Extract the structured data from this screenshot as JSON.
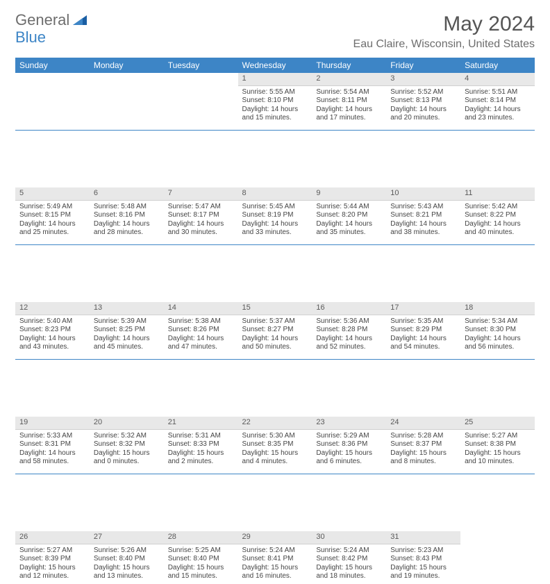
{
  "logo": {
    "word1": "General",
    "word2": "Blue"
  },
  "title": {
    "month": "May 2024",
    "location": "Eau Claire, Wisconsin, United States"
  },
  "colors": {
    "header_bg": "#3d85c6",
    "header_text": "#ffffff",
    "daynum_bg": "#e8e8e8",
    "divider": "#3d85c6",
    "logo_gray": "#6d6d6d",
    "logo_blue": "#3d85c6",
    "body_text": "#444444",
    "background": "#ffffff"
  },
  "days_of_week": [
    "Sunday",
    "Monday",
    "Tuesday",
    "Wednesday",
    "Thursday",
    "Friday",
    "Saturday"
  ],
  "weeks": [
    [
      null,
      null,
      null,
      {
        "n": "1",
        "sunrise": "5:55 AM",
        "sunset": "8:10 PM",
        "d1": "Daylight: 14 hours",
        "d2": "and 15 minutes."
      },
      {
        "n": "2",
        "sunrise": "5:54 AM",
        "sunset": "8:11 PM",
        "d1": "Daylight: 14 hours",
        "d2": "and 17 minutes."
      },
      {
        "n": "3",
        "sunrise": "5:52 AM",
        "sunset": "8:13 PM",
        "d1": "Daylight: 14 hours",
        "d2": "and 20 minutes."
      },
      {
        "n": "4",
        "sunrise": "5:51 AM",
        "sunset": "8:14 PM",
        "d1": "Daylight: 14 hours",
        "d2": "and 23 minutes."
      }
    ],
    [
      {
        "n": "5",
        "sunrise": "5:49 AM",
        "sunset": "8:15 PM",
        "d1": "Daylight: 14 hours",
        "d2": "and 25 minutes."
      },
      {
        "n": "6",
        "sunrise": "5:48 AM",
        "sunset": "8:16 PM",
        "d1": "Daylight: 14 hours",
        "d2": "and 28 minutes."
      },
      {
        "n": "7",
        "sunrise": "5:47 AM",
        "sunset": "8:17 PM",
        "d1": "Daylight: 14 hours",
        "d2": "and 30 minutes."
      },
      {
        "n": "8",
        "sunrise": "5:45 AM",
        "sunset": "8:19 PM",
        "d1": "Daylight: 14 hours",
        "d2": "and 33 minutes."
      },
      {
        "n": "9",
        "sunrise": "5:44 AM",
        "sunset": "8:20 PM",
        "d1": "Daylight: 14 hours",
        "d2": "and 35 minutes."
      },
      {
        "n": "10",
        "sunrise": "5:43 AM",
        "sunset": "8:21 PM",
        "d1": "Daylight: 14 hours",
        "d2": "and 38 minutes."
      },
      {
        "n": "11",
        "sunrise": "5:42 AM",
        "sunset": "8:22 PM",
        "d1": "Daylight: 14 hours",
        "d2": "and 40 minutes."
      }
    ],
    [
      {
        "n": "12",
        "sunrise": "5:40 AM",
        "sunset": "8:23 PM",
        "d1": "Daylight: 14 hours",
        "d2": "and 43 minutes."
      },
      {
        "n": "13",
        "sunrise": "5:39 AM",
        "sunset": "8:25 PM",
        "d1": "Daylight: 14 hours",
        "d2": "and 45 minutes."
      },
      {
        "n": "14",
        "sunrise": "5:38 AM",
        "sunset": "8:26 PM",
        "d1": "Daylight: 14 hours",
        "d2": "and 47 minutes."
      },
      {
        "n": "15",
        "sunrise": "5:37 AM",
        "sunset": "8:27 PM",
        "d1": "Daylight: 14 hours",
        "d2": "and 50 minutes."
      },
      {
        "n": "16",
        "sunrise": "5:36 AM",
        "sunset": "8:28 PM",
        "d1": "Daylight: 14 hours",
        "d2": "and 52 minutes."
      },
      {
        "n": "17",
        "sunrise": "5:35 AM",
        "sunset": "8:29 PM",
        "d1": "Daylight: 14 hours",
        "d2": "and 54 minutes."
      },
      {
        "n": "18",
        "sunrise": "5:34 AM",
        "sunset": "8:30 PM",
        "d1": "Daylight: 14 hours",
        "d2": "and 56 minutes."
      }
    ],
    [
      {
        "n": "19",
        "sunrise": "5:33 AM",
        "sunset": "8:31 PM",
        "d1": "Daylight: 14 hours",
        "d2": "and 58 minutes."
      },
      {
        "n": "20",
        "sunrise": "5:32 AM",
        "sunset": "8:32 PM",
        "d1": "Daylight: 15 hours",
        "d2": "and 0 minutes."
      },
      {
        "n": "21",
        "sunrise": "5:31 AM",
        "sunset": "8:33 PM",
        "d1": "Daylight: 15 hours",
        "d2": "and 2 minutes."
      },
      {
        "n": "22",
        "sunrise": "5:30 AM",
        "sunset": "8:35 PM",
        "d1": "Daylight: 15 hours",
        "d2": "and 4 minutes."
      },
      {
        "n": "23",
        "sunrise": "5:29 AM",
        "sunset": "8:36 PM",
        "d1": "Daylight: 15 hours",
        "d2": "and 6 minutes."
      },
      {
        "n": "24",
        "sunrise": "5:28 AM",
        "sunset": "8:37 PM",
        "d1": "Daylight: 15 hours",
        "d2": "and 8 minutes."
      },
      {
        "n": "25",
        "sunrise": "5:27 AM",
        "sunset": "8:38 PM",
        "d1": "Daylight: 15 hours",
        "d2": "and 10 minutes."
      }
    ],
    [
      {
        "n": "26",
        "sunrise": "5:27 AM",
        "sunset": "8:39 PM",
        "d1": "Daylight: 15 hours",
        "d2": "and 12 minutes."
      },
      {
        "n": "27",
        "sunrise": "5:26 AM",
        "sunset": "8:40 PM",
        "d1": "Daylight: 15 hours",
        "d2": "and 13 minutes."
      },
      {
        "n": "28",
        "sunrise": "5:25 AM",
        "sunset": "8:40 PM",
        "d1": "Daylight: 15 hours",
        "d2": "and 15 minutes."
      },
      {
        "n": "29",
        "sunrise": "5:24 AM",
        "sunset": "8:41 PM",
        "d1": "Daylight: 15 hours",
        "d2": "and 16 minutes."
      },
      {
        "n": "30",
        "sunrise": "5:24 AM",
        "sunset": "8:42 PM",
        "d1": "Daylight: 15 hours",
        "d2": "and 18 minutes."
      },
      {
        "n": "31",
        "sunrise": "5:23 AM",
        "sunset": "8:43 PM",
        "d1": "Daylight: 15 hours",
        "d2": "and 19 minutes."
      },
      null
    ]
  ],
  "labels": {
    "sunrise_prefix": "Sunrise: ",
    "sunset_prefix": "Sunset: "
  }
}
